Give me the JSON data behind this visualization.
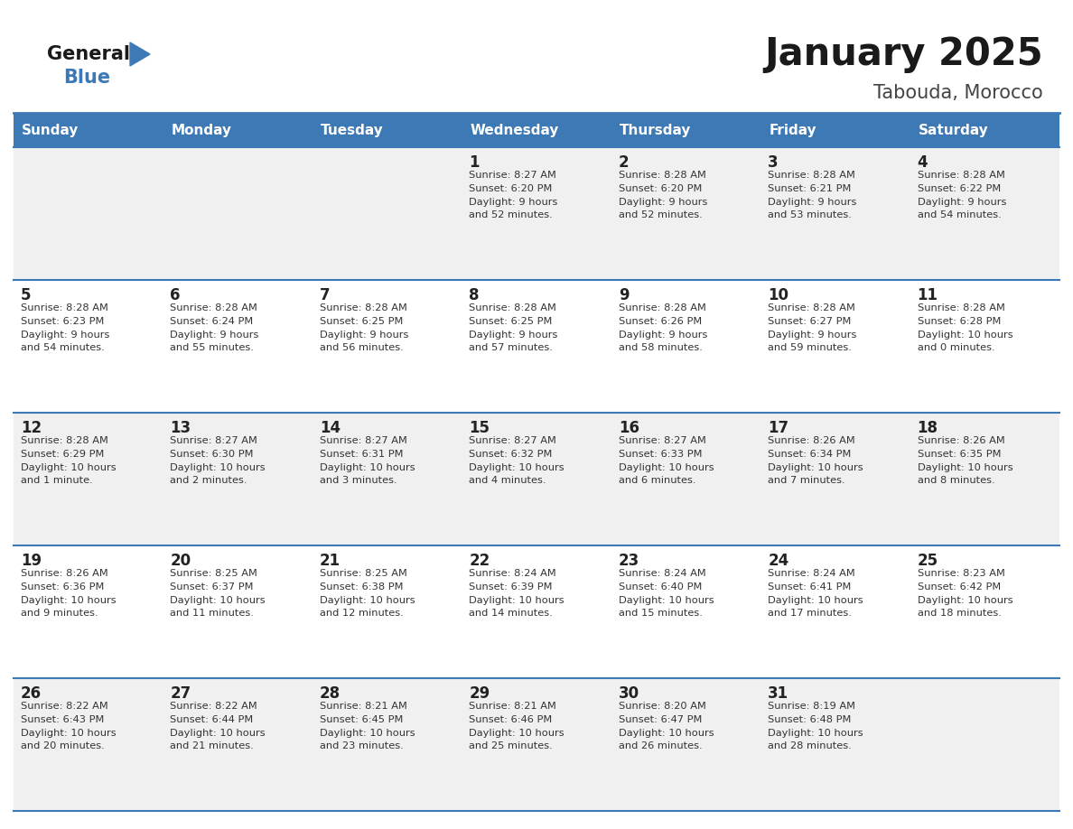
{
  "title": "January 2025",
  "subtitle": "Tabouda, Morocco",
  "days_of_week": [
    "Sunday",
    "Monday",
    "Tuesday",
    "Wednesday",
    "Thursday",
    "Friday",
    "Saturday"
  ],
  "header_bg": "#3d7ab5",
  "header_text": "#ffffff",
  "row_bg_odd": "#f0f0f0",
  "row_bg_even": "#ffffff",
  "cell_text": "#333333",
  "day_num_color": "#222222",
  "divider_color": "#3d7ab5",
  "title_color": "#1a1a1a",
  "subtitle_color": "#444444",
  "logo_general_color": "#1a1a1a",
  "logo_blue_color": "#3d7ab5",
  "calendar": [
    [
      {
        "day": null,
        "info": null
      },
      {
        "day": null,
        "info": null
      },
      {
        "day": null,
        "info": null
      },
      {
        "day": 1,
        "sunrise": "8:27 AM",
        "sunset": "6:20 PM",
        "daylight": "9 hours",
        "minutes": "52 minutes."
      },
      {
        "day": 2,
        "sunrise": "8:28 AM",
        "sunset": "6:20 PM",
        "daylight": "9 hours",
        "minutes": "52 minutes."
      },
      {
        "day": 3,
        "sunrise": "8:28 AM",
        "sunset": "6:21 PM",
        "daylight": "9 hours",
        "minutes": "53 minutes."
      },
      {
        "day": 4,
        "sunrise": "8:28 AM",
        "sunset": "6:22 PM",
        "daylight": "9 hours",
        "minutes": "54 minutes."
      }
    ],
    [
      {
        "day": 5,
        "sunrise": "8:28 AM",
        "sunset": "6:23 PM",
        "daylight": "9 hours",
        "minutes": "54 minutes."
      },
      {
        "day": 6,
        "sunrise": "8:28 AM",
        "sunset": "6:24 PM",
        "daylight": "9 hours",
        "minutes": "55 minutes."
      },
      {
        "day": 7,
        "sunrise": "8:28 AM",
        "sunset": "6:25 PM",
        "daylight": "9 hours",
        "minutes": "56 minutes."
      },
      {
        "day": 8,
        "sunrise": "8:28 AM",
        "sunset": "6:25 PM",
        "daylight": "9 hours",
        "minutes": "57 minutes."
      },
      {
        "day": 9,
        "sunrise": "8:28 AM",
        "sunset": "6:26 PM",
        "daylight": "9 hours",
        "minutes": "58 minutes."
      },
      {
        "day": 10,
        "sunrise": "8:28 AM",
        "sunset": "6:27 PM",
        "daylight": "9 hours",
        "minutes": "59 minutes."
      },
      {
        "day": 11,
        "sunrise": "8:28 AM",
        "sunset": "6:28 PM",
        "daylight": "10 hours",
        "minutes": "0 minutes."
      }
    ],
    [
      {
        "day": 12,
        "sunrise": "8:28 AM",
        "sunset": "6:29 PM",
        "daylight": "10 hours",
        "minutes": "1 minute."
      },
      {
        "day": 13,
        "sunrise": "8:27 AM",
        "sunset": "6:30 PM",
        "daylight": "10 hours",
        "minutes": "2 minutes."
      },
      {
        "day": 14,
        "sunrise": "8:27 AM",
        "sunset": "6:31 PM",
        "daylight": "10 hours",
        "minutes": "3 minutes."
      },
      {
        "day": 15,
        "sunrise": "8:27 AM",
        "sunset": "6:32 PM",
        "daylight": "10 hours",
        "minutes": "4 minutes."
      },
      {
        "day": 16,
        "sunrise": "8:27 AM",
        "sunset": "6:33 PM",
        "daylight": "10 hours",
        "minutes": "6 minutes."
      },
      {
        "day": 17,
        "sunrise": "8:26 AM",
        "sunset": "6:34 PM",
        "daylight": "10 hours",
        "minutes": "7 minutes."
      },
      {
        "day": 18,
        "sunrise": "8:26 AM",
        "sunset": "6:35 PM",
        "daylight": "10 hours",
        "minutes": "8 minutes."
      }
    ],
    [
      {
        "day": 19,
        "sunrise": "8:26 AM",
        "sunset": "6:36 PM",
        "daylight": "10 hours",
        "minutes": "9 minutes."
      },
      {
        "day": 20,
        "sunrise": "8:25 AM",
        "sunset": "6:37 PM",
        "daylight": "10 hours",
        "minutes": "11 minutes."
      },
      {
        "day": 21,
        "sunrise": "8:25 AM",
        "sunset": "6:38 PM",
        "daylight": "10 hours",
        "minutes": "12 minutes."
      },
      {
        "day": 22,
        "sunrise": "8:24 AM",
        "sunset": "6:39 PM",
        "daylight": "10 hours",
        "minutes": "14 minutes."
      },
      {
        "day": 23,
        "sunrise": "8:24 AM",
        "sunset": "6:40 PM",
        "daylight": "10 hours",
        "minutes": "15 minutes."
      },
      {
        "day": 24,
        "sunrise": "8:24 AM",
        "sunset": "6:41 PM",
        "daylight": "10 hours",
        "minutes": "17 minutes."
      },
      {
        "day": 25,
        "sunrise": "8:23 AM",
        "sunset": "6:42 PM",
        "daylight": "10 hours",
        "minutes": "18 minutes."
      }
    ],
    [
      {
        "day": 26,
        "sunrise": "8:22 AM",
        "sunset": "6:43 PM",
        "daylight": "10 hours",
        "minutes": "20 minutes."
      },
      {
        "day": 27,
        "sunrise": "8:22 AM",
        "sunset": "6:44 PM",
        "daylight": "10 hours",
        "minutes": "21 minutes."
      },
      {
        "day": 28,
        "sunrise": "8:21 AM",
        "sunset": "6:45 PM",
        "daylight": "10 hours",
        "minutes": "23 minutes."
      },
      {
        "day": 29,
        "sunrise": "8:21 AM",
        "sunset": "6:46 PM",
        "daylight": "10 hours",
        "minutes": "25 minutes."
      },
      {
        "day": 30,
        "sunrise": "8:20 AM",
        "sunset": "6:47 PM",
        "daylight": "10 hours",
        "minutes": "26 minutes."
      },
      {
        "day": 31,
        "sunrise": "8:19 AM",
        "sunset": "6:48 PM",
        "daylight": "10 hours",
        "minutes": "28 minutes."
      },
      {
        "day": null,
        "info": null
      }
    ]
  ]
}
